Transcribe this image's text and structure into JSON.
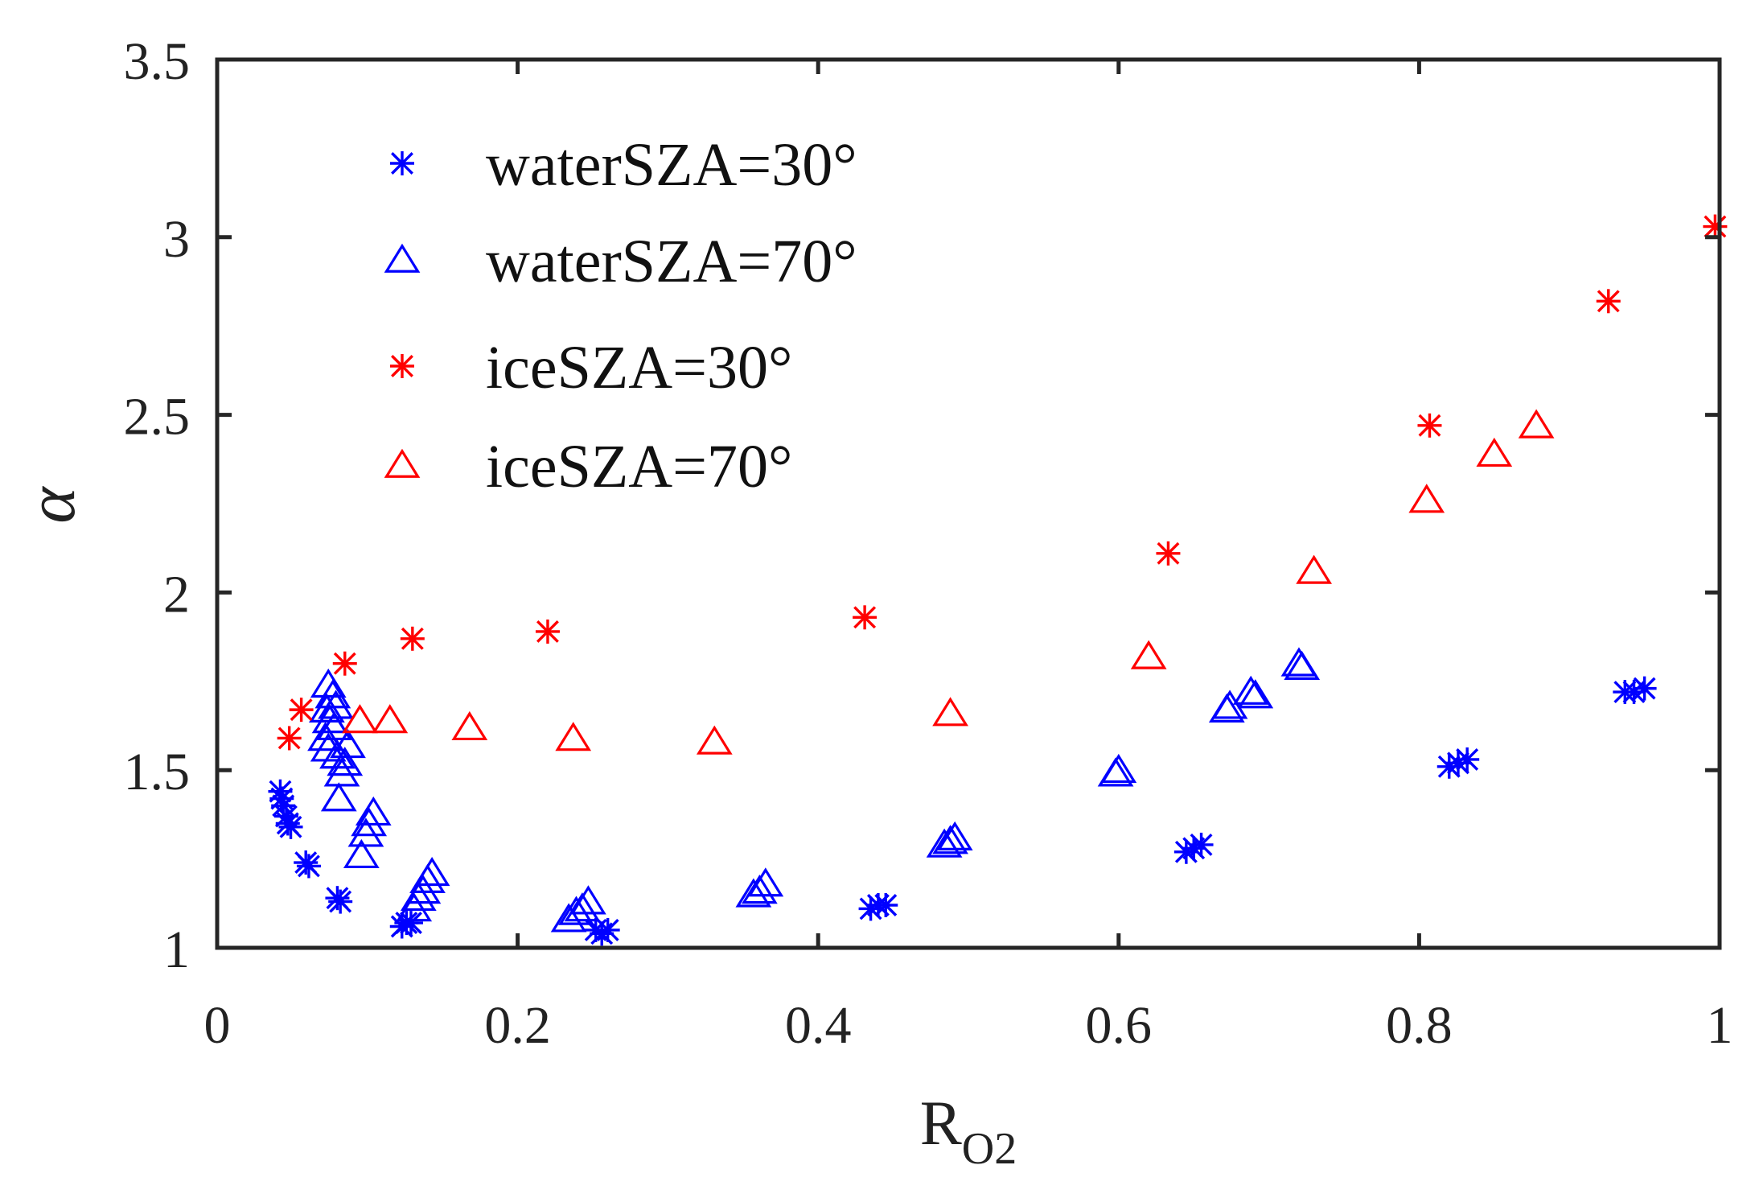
{
  "chart_data": {
    "type": "scatter",
    "title": "",
    "xlabel": "R",
    "xlabel_subscript": "O2",
    "ylabel": "α",
    "xlim": [
      0,
      1
    ],
    "ylim": [
      1,
      3.5
    ],
    "xticks": [
      0,
      0.2,
      0.4,
      0.6,
      0.8,
      1
    ],
    "xtick_labels": [
      "0",
      "0.2",
      "0.4",
      "0.6",
      "0.8",
      "1"
    ],
    "yticks": [
      1,
      1.5,
      2,
      2.5,
      3,
      3.5
    ],
    "ytick_labels": [
      "1",
      "1.5",
      "2",
      "2.5",
      "3",
      "3.5"
    ],
    "grid": false,
    "legend_position": "top-left",
    "series": [
      {
        "name": "waterSZA=30°",
        "marker": "asterisk",
        "color": "#0000ff",
        "points": [
          [
            0.042,
            1.44
          ],
          [
            0.043,
            1.42
          ],
          [
            0.044,
            1.4
          ],
          [
            0.046,
            1.37
          ],
          [
            0.047,
            1.35
          ],
          [
            0.049,
            1.34
          ],
          [
            0.059,
            1.24
          ],
          [
            0.061,
            1.23
          ],
          [
            0.08,
            1.14
          ],
          [
            0.082,
            1.13
          ],
          [
            0.123,
            1.06
          ],
          [
            0.126,
            1.07
          ],
          [
            0.129,
            1.07
          ],
          [
            0.252,
            1.05
          ],
          [
            0.256,
            1.04
          ],
          [
            0.26,
            1.05
          ],
          [
            0.435,
            1.11
          ],
          [
            0.44,
            1.12
          ],
          [
            0.445,
            1.12
          ],
          [
            0.645,
            1.27
          ],
          [
            0.65,
            1.28
          ],
          [
            0.655,
            1.29
          ],
          [
            0.82,
            1.51
          ],
          [
            0.826,
            1.52
          ],
          [
            0.832,
            1.53
          ],
          [
            0.937,
            1.72
          ],
          [
            0.943,
            1.72
          ],
          [
            0.95,
            1.73
          ]
        ]
      },
      {
        "name": "waterSZA=70°",
        "marker": "triangle",
        "color": "#0000ff",
        "points": [
          [
            0.074,
            1.74
          ],
          [
            0.077,
            1.71
          ],
          [
            0.079,
            1.68
          ],
          [
            0.073,
            1.67
          ],
          [
            0.075,
            1.64
          ],
          [
            0.078,
            1.62
          ],
          [
            0.072,
            1.59
          ],
          [
            0.074,
            1.56
          ],
          [
            0.08,
            1.54
          ],
          [
            0.087,
            1.57
          ],
          [
            0.085,
            1.52
          ],
          [
            0.083,
            1.49
          ],
          [
            0.081,
            1.42
          ],
          [
            0.104,
            1.38
          ],
          [
            0.101,
            1.35
          ],
          [
            0.099,
            1.32
          ],
          [
            0.096,
            1.26
          ],
          [
            0.143,
            1.21
          ],
          [
            0.14,
            1.19
          ],
          [
            0.137,
            1.16
          ],
          [
            0.134,
            1.14
          ],
          [
            0.131,
            1.11
          ],
          [
            0.247,
            1.13
          ],
          [
            0.243,
            1.11
          ],
          [
            0.239,
            1.1
          ],
          [
            0.234,
            1.08
          ],
          [
            0.365,
            1.18
          ],
          [
            0.361,
            1.16
          ],
          [
            0.357,
            1.15
          ],
          [
            0.491,
            1.31
          ],
          [
            0.488,
            1.3
          ],
          [
            0.484,
            1.29
          ],
          [
            0.6,
            1.5
          ],
          [
            0.598,
            1.49
          ],
          [
            0.674,
            1.68
          ],
          [
            0.672,
            1.67
          ],
          [
            0.688,
            1.72
          ],
          [
            0.691,
            1.71
          ],
          [
            0.72,
            1.8
          ],
          [
            0.722,
            1.79
          ]
        ]
      },
      {
        "name": "iceSZA=30°",
        "marker": "asterisk",
        "color": "#ff0000",
        "points": [
          [
            0.048,
            1.59
          ],
          [
            0.056,
            1.67
          ],
          [
            0.085,
            1.8
          ],
          [
            0.13,
            1.87
          ],
          [
            0.22,
            1.89
          ],
          [
            0.431,
            1.93
          ],
          [
            0.633,
            2.11
          ],
          [
            0.807,
            2.47
          ],
          [
            0.926,
            2.82
          ],
          [
            0.997,
            3.03
          ]
        ]
      },
      {
        "name": "iceSZA=70°",
        "marker": "triangle",
        "color": "#ff0000",
        "points": [
          [
            0.095,
            1.64
          ],
          [
            0.115,
            1.64
          ],
          [
            0.168,
            1.62
          ],
          [
            0.237,
            1.59
          ],
          [
            0.331,
            1.58
          ],
          [
            0.488,
            1.66
          ],
          [
            0.62,
            1.82
          ],
          [
            0.73,
            2.06
          ],
          [
            0.805,
            2.26
          ],
          [
            0.85,
            2.39
          ],
          [
            0.878,
            2.47
          ]
        ]
      }
    ]
  }
}
